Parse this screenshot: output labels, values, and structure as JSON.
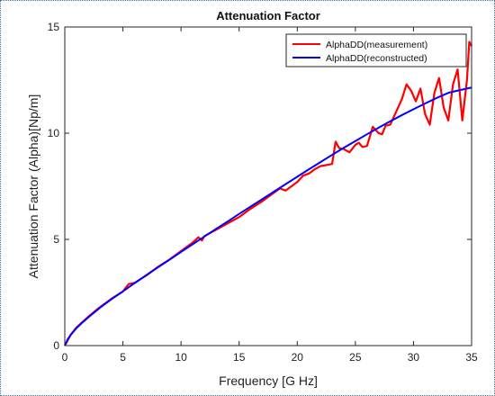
{
  "chart_data": {
    "type": "line",
    "title": "Attenuation Factor",
    "xlabel": "Frequency [G Hz]",
    "ylabel": "Attenuation Factor (Alpha)[Np/m]",
    "xlim": [
      0,
      35
    ],
    "ylim": [
      0,
      15
    ],
    "xticks": [
      "0",
      "5",
      "10",
      "15",
      "20",
      "25",
      "30",
      "35"
    ],
    "yticks": [
      "0",
      "5",
      "10",
      "15"
    ],
    "grid": false,
    "legend_position": "top-right",
    "series": [
      {
        "name": "AlphaDD(measurement)",
        "color": "#ff0000",
        "x": [
          0,
          0.5,
          1,
          1.5,
          2,
          3,
          4,
          5,
          5.5,
          6,
          7,
          8,
          9,
          10,
          11,
          11.5,
          11.8,
          12,
          13,
          14,
          15,
          16,
          17,
          18,
          18.5,
          19,
          20,
          20.5,
          21,
          21.5,
          22,
          22.5,
          23,
          23.3,
          23.6,
          24,
          24.5,
          25,
          25.3,
          25.6,
          26,
          26.5,
          27,
          27.3,
          27.6,
          28,
          28.5,
          29,
          29.4,
          29.8,
          30.2,
          30.6,
          31,
          31.4,
          31.8,
          32.2,
          32.6,
          33,
          33.4,
          33.8,
          34.2,
          34.6,
          34.8,
          35
        ],
        "y": [
          0,
          0.5,
          0.85,
          1.1,
          1.35,
          1.8,
          2.2,
          2.55,
          2.9,
          2.95,
          3.3,
          3.7,
          4.05,
          4.45,
          4.85,
          5.1,
          4.95,
          5.15,
          5.45,
          5.75,
          6.05,
          6.45,
          6.8,
          7.2,
          7.4,
          7.3,
          7.7,
          8.0,
          8.1,
          8.3,
          8.45,
          8.5,
          8.55,
          9.6,
          9.3,
          9.25,
          9.1,
          9.45,
          9.55,
          9.35,
          9.4,
          10.3,
          10.0,
          9.95,
          10.35,
          10.4,
          11.0,
          11.6,
          12.3,
          12.0,
          11.5,
          12.1,
          10.9,
          10.4,
          11.9,
          12.6,
          11.2,
          10.6,
          12.3,
          13.0,
          10.6,
          12.5,
          14.3,
          14.1
        ]
      },
      {
        "name": "AlphaDD(reconstructed)",
        "color": "#0000ff",
        "x": [
          0,
          0.25,
          0.5,
          1,
          1.5,
          2,
          3,
          4,
          5,
          6,
          7,
          8,
          9,
          10,
          11,
          12,
          13,
          14,
          15,
          16,
          17,
          18,
          19,
          20,
          21,
          22,
          23,
          24,
          25,
          26,
          27,
          28,
          29,
          30,
          31,
          32,
          33,
          34,
          35
        ],
        "y": [
          0,
          0.3,
          0.5,
          0.82,
          1.08,
          1.32,
          1.77,
          2.18,
          2.55,
          2.94,
          3.31,
          3.68,
          4.04,
          4.41,
          4.77,
          5.13,
          5.49,
          5.84,
          6.2,
          6.55,
          6.9,
          7.25,
          7.6,
          7.95,
          8.3,
          8.64,
          8.98,
          9.31,
          9.63,
          9.95,
          10.26,
          10.56,
          10.85,
          11.13,
          11.4,
          11.66,
          11.9,
          12.03,
          12.15
        ]
      }
    ]
  }
}
